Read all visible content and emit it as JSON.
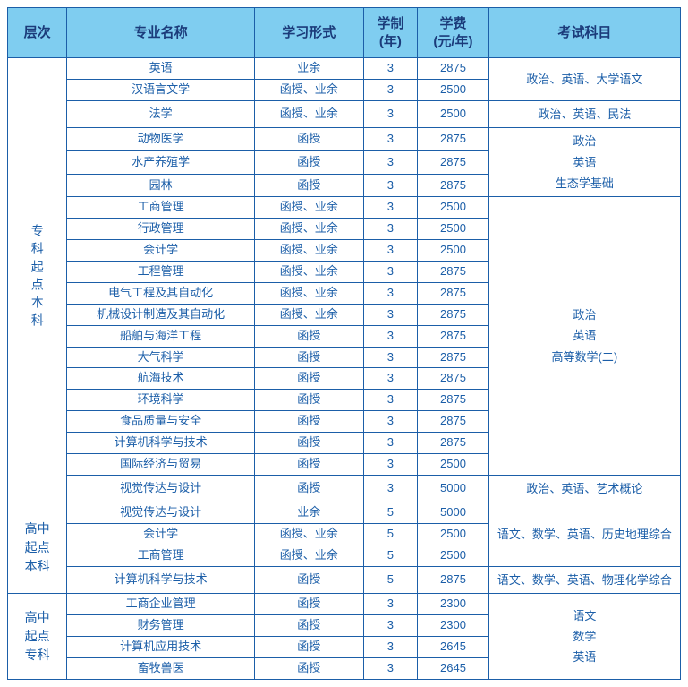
{
  "header": {
    "level": "层次",
    "major": "专业名称",
    "study": "学习形式",
    "years": "学制\n(年)",
    "fee": "学费\n(元/年)",
    "exam": "考试科目"
  },
  "levels": [
    {
      "label": "专科起点本科",
      "mode": "v"
    },
    {
      "label": "高中起点本科",
      "mode": "h"
    },
    {
      "label": "高中起点专科",
      "mode": "h"
    }
  ],
  "exams": [
    "政治、英语、大学语文",
    "政治、英语、民法",
    "政治\n英语\n生态学基础",
    "政治\n英语\n高等数学(二)",
    "政治、英语、艺术概论",
    "语文、数学、英语、历史地理综合",
    "语文、数学、英语、物理化学综合",
    "语文\n数学\n英语"
  ],
  "rows": [
    {
      "m": "英语",
      "s": "业余",
      "y": "3",
      "f": "2875"
    },
    {
      "m": "汉语言文学",
      "s": "函授、业余",
      "y": "3",
      "f": "2500"
    },
    {
      "m": "法学",
      "s": "函授、业余",
      "y": "3",
      "f": "2500"
    },
    {
      "m": "动物医学",
      "s": "函授",
      "y": "3",
      "f": "2875"
    },
    {
      "m": "水产养殖学",
      "s": "函授",
      "y": "3",
      "f": "2875"
    },
    {
      "m": "园林",
      "s": "函授",
      "y": "3",
      "f": "2875"
    },
    {
      "m": "工商管理",
      "s": "函授、业余",
      "y": "3",
      "f": "2500"
    },
    {
      "m": "行政管理",
      "s": "函授、业余",
      "y": "3",
      "f": "2500"
    },
    {
      "m": "会计学",
      "s": "函授、业余",
      "y": "3",
      "f": "2500"
    },
    {
      "m": "工程管理",
      "s": "函授、业余",
      "y": "3",
      "f": "2875"
    },
    {
      "m": "电气工程及其自动化",
      "s": "函授、业余",
      "y": "3",
      "f": "2875"
    },
    {
      "m": "机械设计制造及其自动化",
      "s": "函授、业余",
      "y": "3",
      "f": "2875"
    },
    {
      "m": "船舶与海洋工程",
      "s": "函授",
      "y": "3",
      "f": "2875"
    },
    {
      "m": "大气科学",
      "s": "函授",
      "y": "3",
      "f": "2875"
    },
    {
      "m": "航海技术",
      "s": "函授",
      "y": "3",
      "f": "2875"
    },
    {
      "m": "环境科学",
      "s": "函授",
      "y": "3",
      "f": "2875"
    },
    {
      "m": "食品质量与安全",
      "s": "函授",
      "y": "3",
      "f": "2875"
    },
    {
      "m": "计算机科学与技术",
      "s": "函授",
      "y": "3",
      "f": "2875"
    },
    {
      "m": "国际经济与贸易",
      "s": "函授",
      "y": "3",
      "f": "2500"
    },
    {
      "m": "视觉传达与设计",
      "s": "函授",
      "y": "3",
      "f": "5000"
    },
    {
      "m": "视觉传达与设计",
      "s": "业余",
      "y": "5",
      "f": "5000"
    },
    {
      "m": "会计学",
      "s": "函授、业余",
      "y": "5",
      "f": "2500"
    },
    {
      "m": "工商管理",
      "s": "函授、业余",
      "y": "5",
      "f": "2500"
    },
    {
      "m": "计算机科学与技术",
      "s": "函授",
      "y": "5",
      "f": "2875"
    },
    {
      "m": "工商企业管理",
      "s": "函授",
      "y": "3",
      "f": "2300"
    },
    {
      "m": "财务管理",
      "s": "函授",
      "y": "3",
      "f": "2300"
    },
    {
      "m": "计算机应用技术",
      "s": "函授",
      "y": "3",
      "f": "2645"
    },
    {
      "m": "畜牧兽医",
      "s": "函授",
      "y": "3",
      "f": "2645"
    }
  ],
  "colors": {
    "border": "#1b5ea8",
    "header_bg": "#7fcdf0",
    "header_text": "#1b3b7a",
    "body_text": "#1b5ea8",
    "background": "#ffffff"
  }
}
